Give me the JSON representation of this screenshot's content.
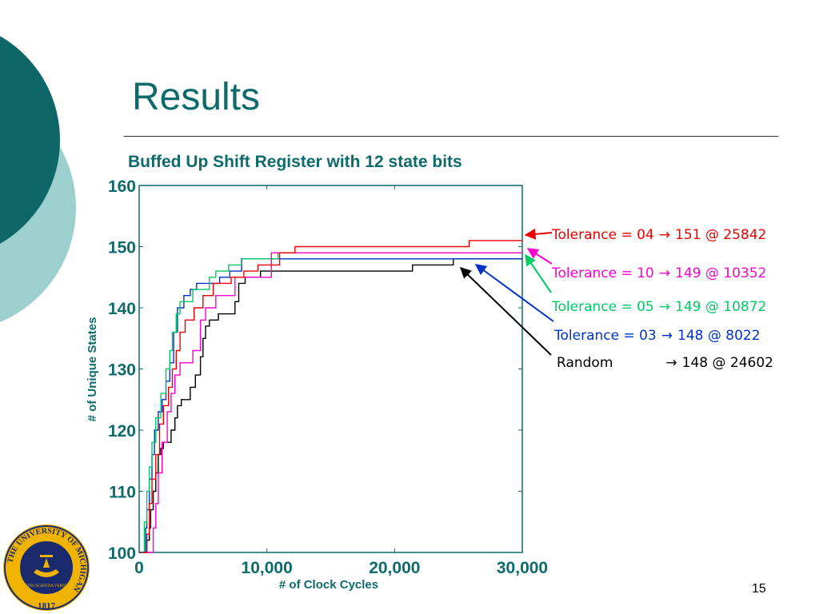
{
  "slide": {
    "title": "Results",
    "page_number": "15",
    "seal_text": "THE UNIVERSITY OF MICHIGAN",
    "seal_year": "1817",
    "seal_motto": "ARTES SCIENTIA VERITAS"
  },
  "colors": {
    "teal": "#0e6b6b",
    "light_teal": "#9dcfcf"
  },
  "chart_data": {
    "type": "line",
    "title": "Buffed Up Shift Register with 12 state bits",
    "xlabel": "# of Clock Cycles",
    "ylabel": "# of Unique States",
    "xlim": [
      0,
      30000
    ],
    "ylim": [
      100,
      160
    ],
    "xticks": [
      0,
      10000,
      20000,
      30000
    ],
    "xtick_labels": [
      "0",
      "10,000",
      "20,000",
      "30,000"
    ],
    "yticks": [
      100,
      110,
      120,
      130,
      140,
      150,
      160
    ],
    "ytick_labels": [
      "100",
      "110",
      "120",
      "130",
      "140",
      "150",
      "160"
    ],
    "grid": false,
    "series": [
      {
        "name": "Random",
        "label": "Random",
        "result": "148 @ 24602",
        "color": "#000000",
        "x": [
          0,
          500,
          600,
          800,
          900,
          1100,
          1300,
          1500,
          1700,
          1900,
          2200,
          2500,
          2800,
          3000,
          3300,
          3600,
          4000,
          4400,
          4800,
          5000,
          5200,
          5500,
          5800,
          6200,
          7000,
          7500,
          7800,
          8300,
          9500,
          11000,
          14000,
          17000,
          21400,
          24602,
          30000
        ],
        "y": [
          100,
          100,
          102,
          104,
          107,
          110,
          113,
          116,
          117,
          118,
          118,
          120,
          122,
          124,
          125,
          125,
          127,
          129,
          132,
          135,
          137,
          138,
          138,
          139,
          139,
          141,
          144,
          145,
          146,
          146,
          146,
          146,
          147,
          148,
          148
        ]
      },
      {
        "name": "Tolerance = 03",
        "label": "Tolerance = 03",
        "result": "148 @ 8022",
        "color": "#0033cc",
        "x": [
          0,
          500,
          600,
          800,
          1000,
          1200,
          1500,
          1800,
          2100,
          2400,
          2700,
          3000,
          3500,
          4000,
          4500,
          5300,
          6300,
          7100,
          8022,
          30000
        ],
        "y": [
          100,
          104,
          107,
          112,
          116,
          120,
          123,
          125,
          128,
          131,
          136,
          140,
          142,
          143,
          144,
          144,
          145,
          146,
          148,
          148
        ]
      },
      {
        "name": "Tolerance = 05",
        "label": "Tolerance = 05",
        "result": "149 @ 10872",
        "color": "#00cc66",
        "x": [
          0,
          400,
          600,
          800,
          1000,
          1300,
          1700,
          2100,
          2400,
          2600,
          2900,
          3200,
          3600,
          4200,
          5500,
          6000,
          7000,
          8000,
          10872,
          30000
        ],
        "y": [
          100,
          105,
          110,
          114,
          118,
          122,
          126,
          130,
          133,
          136,
          139,
          141,
          141,
          143,
          145,
          146,
          147,
          148,
          149,
          149
        ]
      },
      {
        "name": "Tolerance = 10",
        "label": "Tolerance = 10",
        "result": "149 @ 10352",
        "color": "#ff00cc",
        "x": [
          0,
          1100,
          1300,
          1500,
          1800,
          2200,
          2500,
          2800,
          3200,
          3700,
          4200,
          4800,
          5200,
          6000,
          7500,
          10352,
          30000
        ],
        "y": [
          100,
          104,
          108,
          113,
          118,
          123,
          126,
          129,
          131,
          131,
          133,
          138,
          140,
          142,
          145,
          149,
          149
        ]
      },
      {
        "name": "Tolerance = 04",
        "label": "Tolerance = 04",
        "result": "151 @ 25842",
        "color": "#ee0000",
        "x": [
          0,
          600,
          800,
          1000,
          1300,
          1600,
          1900,
          2300,
          2600,
          2900,
          3200,
          3600,
          4300,
          5000,
          5800,
          7200,
          8200,
          9300,
          11000,
          12200,
          25842,
          30000
        ],
        "y": [
          100,
          103,
          108,
          112,
          116,
          121,
          124,
          127,
          130,
          133,
          136,
          138,
          140,
          142,
          144,
          145,
          146,
          147,
          149,
          150,
          151,
          151
        ]
      }
    ]
  },
  "legend": [
    {
      "label": "Tolerance = 04",
      "arrow": "→",
      "result": "151 @ 25842",
      "color": "#ee0000"
    },
    {
      "label": "Tolerance = 10",
      "arrow": "→",
      "result": "149 @ 10352",
      "color": "#ff00cc"
    },
    {
      "label": "Tolerance = 05",
      "arrow": "→",
      "result": "149 @ 10872",
      "color": "#00cc66"
    },
    {
      "label": "Tolerance = 03",
      "arrow": "→",
      "result": "148 @ 8022",
      "color": "#0033cc"
    },
    {
      "label": "Random",
      "arrow": "→",
      "result": "148 @ 24602",
      "color": "#000000"
    }
  ]
}
